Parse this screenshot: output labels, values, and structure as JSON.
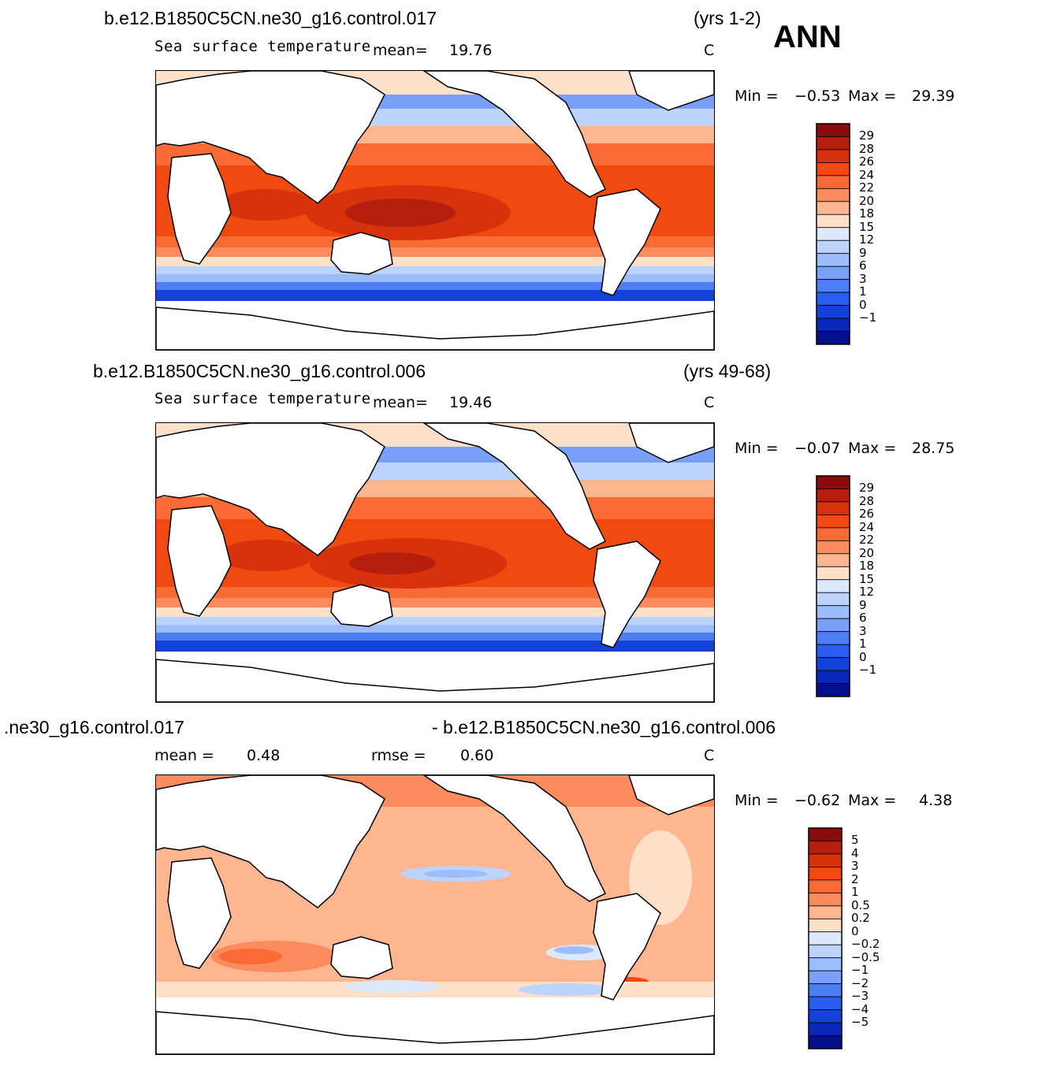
{
  "season": "ANN",
  "panels": [
    {
      "case": "b.e12.B1850C5CN.ne30_g16.control.017",
      "years": "(yrs 1-2)",
      "variable": "Sea surface temperature",
      "stat_label": "mean=",
      "stat_value": "19.76",
      "units": "C",
      "min_label": "Min =",
      "min_value": "−0.53",
      "max_label": "Max =",
      "max_value": "29.39",
      "colorbar": {
        "labels": [
          "29",
          "28",
          "26",
          "24",
          "22",
          "20",
          "18",
          "15",
          "12",
          "9",
          "6",
          "3",
          "1",
          "0",
          "−1"
        ],
        "colors": [
          "#8b0a0a",
          "#b51e0c",
          "#d8320c",
          "#f04a10",
          "#fa6a35",
          "#fc8b5d",
          "#fdb690",
          "#fde0c7",
          "#dce9fa",
          "#bcd3fb",
          "#9cbcfb",
          "#78a0f8",
          "#4e7ef5",
          "#2b5cf0",
          "#1441d8",
          "#0a28b8",
          "#03108a"
        ]
      }
    },
    {
      "case": "b.e12.B1850C5CN.ne30_g16.control.006",
      "years": "(yrs 49-68)",
      "variable": "Sea surface temperature",
      "stat_label": "mean=",
      "stat_value": "19.46",
      "units": "C",
      "min_label": "Min =",
      "min_value": "−0.07",
      "max_label": "Max =",
      "max_value": "28.75",
      "colorbar": {
        "labels": [
          "29",
          "28",
          "26",
          "24",
          "22",
          "20",
          "18",
          "15",
          "12",
          "9",
          "6",
          "3",
          "1",
          "0",
          "−1"
        ],
        "colors": [
          "#8b0a0a",
          "#b51e0c",
          "#d8320c",
          "#f04a10",
          "#fa6a35",
          "#fc8b5d",
          "#fdb690",
          "#fde0c7",
          "#dce9fa",
          "#bcd3fb",
          "#9cbcfb",
          "#78a0f8",
          "#4e7ef5",
          "#2b5cf0",
          "#1441d8",
          "#0a28b8",
          "#03108a"
        ]
      }
    },
    {
      "case_left": ".ne30_g16.control.017",
      "case_right": "- b.e12.B1850C5CN.ne30_g16.control.006",
      "mean_label": "mean =",
      "mean_value": "0.48",
      "rmse_label": "rmse =",
      "rmse_value": "0.60",
      "units": "C",
      "min_label": "Min =",
      "min_value": "−0.62",
      "max_label": "Max =",
      "max_value": "4.38",
      "colorbar": {
        "labels": [
          "5",
          "4",
          "3",
          "2",
          "1",
          "0.5",
          "0.2",
          "0",
          "−0.2",
          "−0.5",
          "−1",
          "−2",
          "−3",
          "−4",
          "−5"
        ],
        "colors": [
          "#8b0a0a",
          "#b51e0c",
          "#d8320c",
          "#f04a10",
          "#fa6a35",
          "#fc8b5d",
          "#fdb690",
          "#fde0c7",
          "#dce9fa",
          "#bcd3fb",
          "#9cbcfb",
          "#78a0f8",
          "#4e7ef5",
          "#2b5cf0",
          "#1441d8",
          "#0a28b8",
          "#03108a"
        ]
      }
    }
  ]
}
